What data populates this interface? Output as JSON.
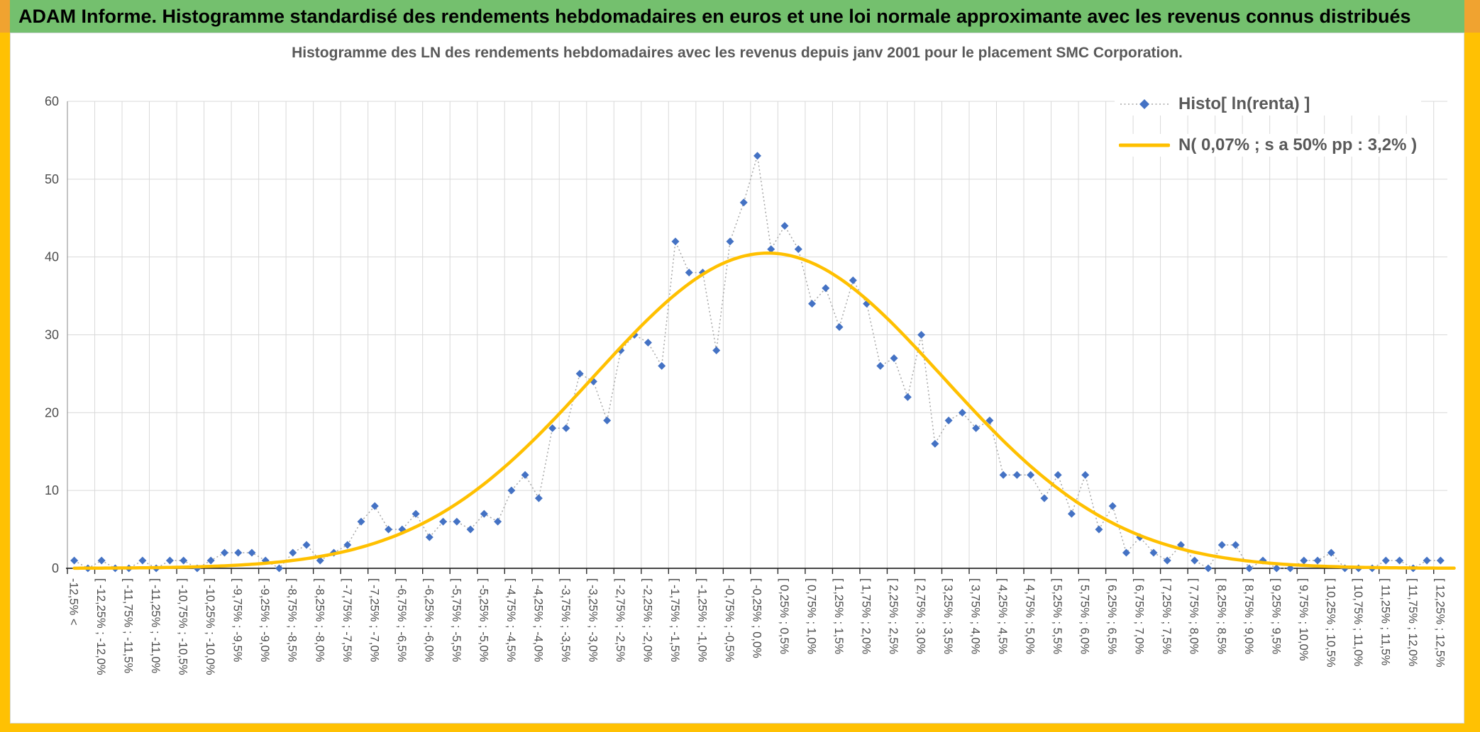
{
  "header": {
    "title": "ADAM Informe. Histogramme standardisé des rendements hebdomadaires en euros et une loi normale approximante avec les revenus connus distribués"
  },
  "colors": {
    "banner_green": "#74C06E",
    "frame_yellow": "#FFC103",
    "corner_orange": "#F0A330",
    "series_blue": "#4472C4",
    "curve_gold": "#FFC000",
    "grid_gray": "#D9D9D9",
    "axis_dark": "#2B2B2B",
    "text_gray": "#595959"
  },
  "chart": {
    "title": "Histogramme des LN des rendements hebdomadaires avec les revenus depuis janv 2001 pour le placement SMC Corporation.",
    "legend": [
      {
        "label": "Histo[ ln(renta) ]",
        "marker": "blue-diamond-dotted-line"
      },
      {
        "label": "N( 0,07% ; s a 50% pp : 3,2% )",
        "marker": "gold-line"
      }
    ]
  },
  "chart_data": {
    "type": "line",
    "title": "Histogramme des LN des rendements hebdomadaires avec les revenus depuis janv 2001 pour le placement SMC Corporation.",
    "ylim": [
      0,
      60
    ],
    "y_ticks": [
      0,
      10,
      20,
      30,
      40,
      50,
      60
    ],
    "grid": true,
    "legend_position": "inside-top-right",
    "x_bins": {
      "min_pct": -12.5,
      "max_pct": 12.5,
      "bin_width_pct": 0.25,
      "bin_count": 101,
      "first_bin": "underflow (< -12,5%)",
      "label_every_n_bins": 2
    },
    "x_tick_labels": [
      "-12,5% <",
      "[ -12,25% ; -12,0%",
      "[ -11,75% ; -11,5%",
      "[ -11,25% ; -11,0%",
      "[ -10,75% ; -10,5%",
      "[ -10,25% ; -10,0%",
      "[ -9,75% ; -9,5%",
      "[ -9,25% ; -9,0%",
      "[ -8,75% ; -8,5%",
      "[ -8,25% ; -8,0%",
      "[ -7,75% ; -7,5%",
      "[ -7,25% ; -7,0%",
      "[ -6,75% ; -6,5%",
      "[ -6,25% ; -6,0%",
      "[ -5,75% ; -5,5%",
      "[ -5,25% ; -5,0%",
      "[ -4,75% ; -4,5%",
      "[ -4,25% ; -4,0%",
      "[ -3,75% ; -3,5%",
      "[ -3,25% ; -3,0%",
      "[ -2,75% ; -2,5%",
      "[ -2,25% ; -2,0%",
      "[ -1,75% ; -1,5%",
      "[ -1,25% ; -1,0%",
      "[ -0,75% ; -0,5%",
      "[ -0,25% ; 0,0%",
      "[ 0,25% ; 0,5%",
      "[ 0,75% ; 1,0%",
      "[ 1,25% ; 1,5%",
      "[ 1,75% ; 2,0%",
      "[ 2,25% ; 2,5%",
      "[ 2,75% ; 3,0%",
      "[ 3,25% ; 3,5%",
      "[ 3,75% ; 4,0%",
      "[ 4,25% ; 4,5%",
      "[ 4,75% ; 5,0%",
      "[ 5,25% ; 5,5%",
      "[ 5,75% ; 6,0%",
      "[ 6,25% ; 6,5%",
      "[ 6,75% ; 7,0%",
      "[ 7,25% ; 7,5%",
      "[ 7,75% ; 8,0%",
      "[ 8,25% ; 8,5%",
      "[ 8,75% ; 9,0%",
      "[ 9,25% ; 9,5%",
      "[ 9,75% ; 10,0%",
      "[ 10,25% ; 10,5%",
      "[ 10,75% ; 11,0%",
      "[ 11,25% ; 11,5%",
      "[ 11,75% ; 12,0%",
      "[ 12,25% ; 12,5%"
    ],
    "series": [
      {
        "name": "Histo[ ln(renta) ]",
        "type": "scatter-dotted-line",
        "color": "#4472C4",
        "line_color": "#A6A6A6",
        "values": [
          1,
          0,
          1,
          0,
          0,
          1,
          0,
          1,
          1,
          0,
          1,
          2,
          2,
          2,
          1,
          0,
          2,
          3,
          1,
          2,
          3,
          6,
          8,
          5,
          5,
          7,
          4,
          6,
          6,
          5,
          7,
          6,
          10,
          12,
          9,
          18,
          18,
          25,
          24,
          19,
          28,
          30,
          29,
          26,
          42,
          38,
          38,
          28,
          42,
          47,
          53,
          41,
          44,
          41,
          34,
          36,
          31,
          37,
          34,
          26,
          27,
          22,
          30,
          16,
          19,
          20,
          18,
          19,
          12,
          12,
          12,
          9,
          12,
          7,
          12,
          5,
          8,
          2,
          4,
          2,
          1,
          3,
          1,
          0,
          3,
          3,
          0,
          1,
          0,
          0,
          1,
          1,
          2,
          0,
          0,
          0,
          1,
          1,
          0,
          1,
          1
        ]
      },
      {
        "name": "N( 0,07% ; s a 50% pp : 3,2% )",
        "type": "normal-curve",
        "color": "#FFC000",
        "mean_pct": 0.07,
        "sigma_pct": 3.2,
        "peak_y": 40.5
      }
    ]
  }
}
